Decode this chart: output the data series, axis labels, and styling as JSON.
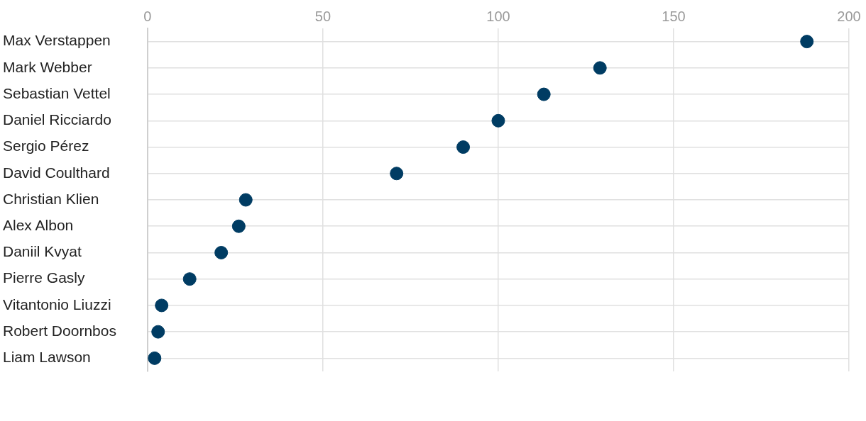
{
  "chart_data": {
    "type": "scatter",
    "orientation": "horizontal",
    "categories": [
      "Max Verstappen",
      "Mark Webber",
      "Sebastian Vettel",
      "Daniel Ricciardo",
      "Sergio Pérez",
      "David Coulthard",
      "Christian Klien",
      "Alex Albon",
      "Daniil Kvyat",
      "Pierre Gasly",
      "Vitantonio Liuzzi",
      "Robert Doornbos",
      "Liam Lawson"
    ],
    "values": [
      188,
      129,
      113,
      100,
      90,
      71,
      28,
      26,
      21,
      12,
      4,
      3,
      2
    ],
    "color": "#003c63",
    "marker": "circle",
    "xlim": [
      0,
      200
    ],
    "xticks": [
      0,
      50,
      100,
      150,
      200
    ],
    "grid": true,
    "legend": false
  }
}
